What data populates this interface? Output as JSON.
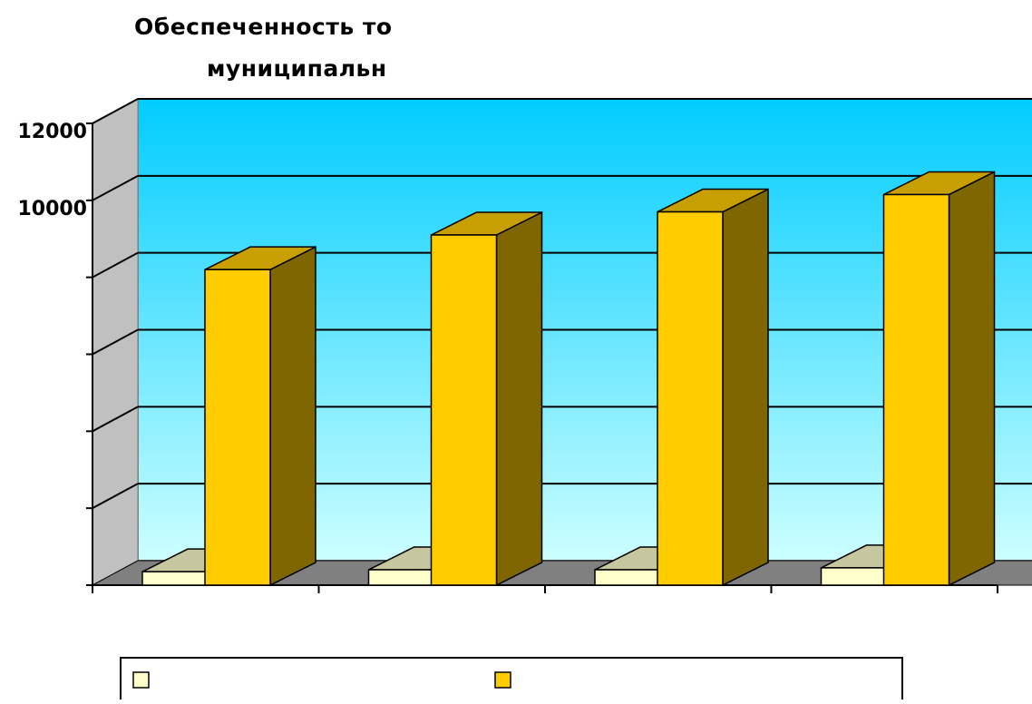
{
  "chart_data": {
    "type": "bar",
    "title": [
      "Обеспеченность то",
      "муниципальн"
    ],
    "categories": [
      "",
      "",
      "",
      ""
    ],
    "series": [
      {
        "name": "",
        "values": [
          350,
          400,
          400,
          450
        ],
        "color": "#ffffcc"
      },
      {
        "name": "",
        "values": [
          8200,
          9100,
          9700,
          10150
        ],
        "color": "#ffcc00"
      }
    ],
    "ylim": [
      0,
      12000
    ],
    "yticks": [
      0,
      2000,
      4000,
      6000,
      8000,
      10000,
      12000
    ],
    "ytick_labels": [
      "",
      "",
      "",
      "",
      "",
      "10000",
      "12000"
    ],
    "grid": true,
    "legend": "bottom",
    "colors": {
      "wall_top": "#00ccff",
      "wall_bottom": "#ccffff",
      "floor": "#808080",
      "side_wall": "#c0c0c0"
    }
  }
}
